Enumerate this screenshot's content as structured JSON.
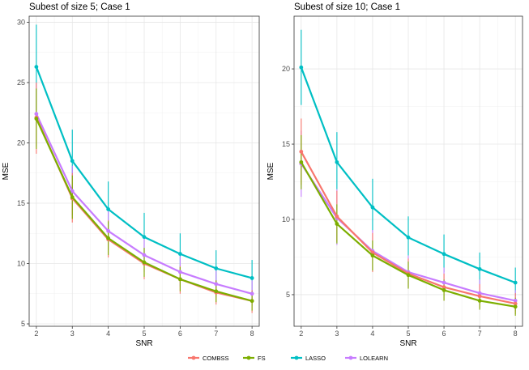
{
  "colors": {
    "COMBSS": "#F8766D",
    "FS": "#7CAE00",
    "LASSO": "#00BFC4",
    "LOLEARN": "#C77CFF"
  },
  "legend": {
    "items": [
      "COMBSS",
      "FS",
      "LASSO",
      "LOLEARN"
    ],
    "position": "bottom"
  },
  "chart_data": [
    {
      "type": "line",
      "title": "Subest of size 5; Case 1",
      "xlabel": "SNR",
      "ylabel": "MSE",
      "xlim": [
        1.8,
        8.2
      ],
      "ylim": [
        4.8,
        30.5
      ],
      "xticks": [
        2,
        3,
        4,
        5,
        6,
        7,
        8
      ],
      "yticks": [
        5,
        10,
        15,
        20,
        25,
        30
      ],
      "grid": true,
      "x": [
        2,
        3,
        4,
        5,
        6,
        7,
        8
      ],
      "series": [
        {
          "name": "LASSO",
          "values": [
            26.3,
            18.5,
            14.5,
            12.2,
            10.8,
            9.6,
            8.8
          ],
          "err_low": [
            22.7,
            15.9,
            12.0,
            10.2,
            9.1,
            8.1,
            7.4
          ],
          "err_high": [
            29.8,
            21.1,
            16.8,
            14.2,
            12.5,
            11.1,
            10.3
          ]
        },
        {
          "name": "LOLEARN",
          "values": [
            22.4,
            16.0,
            12.7,
            10.7,
            9.3,
            8.3,
            7.5
          ],
          "err_low": [
            19.7,
            14.0,
            11.1,
            9.3,
            8.1,
            7.2,
            6.5
          ],
          "err_high": [
            25.0,
            18.1,
            14.4,
            12.1,
            10.6,
            9.4,
            8.6
          ]
        },
        {
          "name": "COMBSS",
          "values": [
            22.1,
            15.4,
            12.0,
            10.0,
            8.7,
            7.6,
            6.9
          ],
          "err_low": [
            19.1,
            13.4,
            10.5,
            8.7,
            7.5,
            6.6,
            5.9
          ],
          "err_high": [
            25.0,
            17.5,
            13.6,
            11.3,
            9.8,
            8.6,
            7.8
          ]
        },
        {
          "name": "FS",
          "values": [
            22.0,
            15.5,
            12.1,
            10.1,
            8.7,
            7.7,
            6.9
          ],
          "err_low": [
            19.5,
            13.7,
            10.7,
            8.9,
            7.7,
            6.8,
            6.1
          ],
          "err_high": [
            24.5,
            17.3,
            13.5,
            11.3,
            9.7,
            8.6,
            7.7
          ]
        }
      ]
    },
    {
      "type": "line",
      "title": "Subest of size 10; Case 1",
      "xlabel": "SNR",
      "ylabel": "MSE",
      "xlim": [
        1.8,
        8.2
      ],
      "ylim": [
        2.9,
        23.5
      ],
      "xticks": [
        2,
        3,
        4,
        5,
        6,
        7,
        8
      ],
      "yticks": [
        5,
        10,
        15,
        20
      ],
      "grid": true,
      "x": [
        2,
        3,
        4,
        5,
        6,
        7,
        8
      ],
      "series": [
        {
          "name": "LASSO",
          "values": [
            20.1,
            13.8,
            10.8,
            8.8,
            7.7,
            6.7,
            5.8
          ],
          "err_low": [
            17.6,
            12.0,
            9.2,
            7.6,
            6.5,
            5.7,
            4.9
          ],
          "err_high": [
            22.6,
            15.8,
            12.7,
            10.2,
            9.0,
            7.8,
            6.8
          ]
        },
        {
          "name": "LOLEARN",
          "values": [
            13.7,
            10.1,
            7.9,
            6.5,
            5.8,
            5.1,
            4.6
          ],
          "err_low": [
            11.5,
            8.3,
            6.6,
            5.5,
            4.9,
            4.3,
            3.9
          ],
          "err_high": [
            15.9,
            12.0,
            9.3,
            7.6,
            6.8,
            6.0,
            5.3
          ]
        },
        {
          "name": "COMBSS",
          "values": [
            14.5,
            10.2,
            7.8,
            6.4,
            5.5,
            4.9,
            4.4
          ],
          "err_low": [
            12.3,
            8.5,
            6.5,
            5.4,
            4.6,
            4.1,
            3.7
          ],
          "err_high": [
            16.7,
            11.9,
            9.1,
            7.4,
            6.4,
            5.7,
            5.1
          ]
        },
        {
          "name": "FS",
          "values": [
            13.8,
            9.7,
            7.6,
            6.3,
            5.3,
            4.6,
            4.2
          ],
          "err_low": [
            12.0,
            8.4,
            6.6,
            5.4,
            4.6,
            4.0,
            3.6
          ],
          "err_high": [
            15.6,
            11.0,
            8.6,
            7.2,
            6.0,
            5.2,
            4.8
          ]
        }
      ]
    }
  ]
}
